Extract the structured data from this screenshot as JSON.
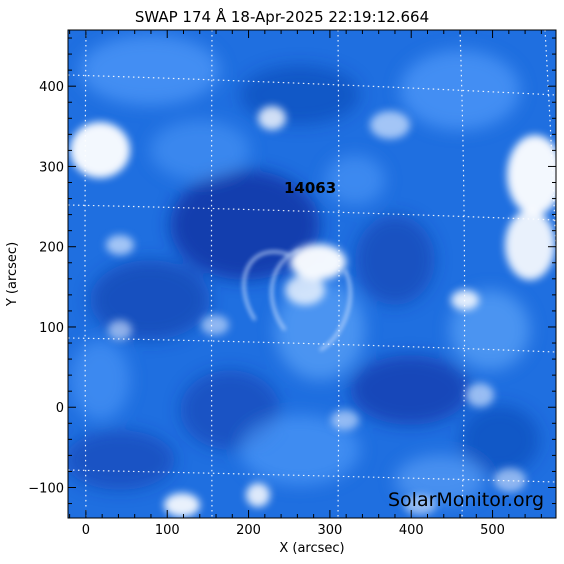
{
  "title": "SWAP 174 Å 18-Apr-2025 22:19:12.664",
  "x_axis": {
    "label": "X (arcsec)",
    "range": [
      -22,
      578
    ],
    "ticks": [
      0,
      100,
      200,
      300,
      400,
      500
    ],
    "tick_labels": [
      "0",
      "100",
      "200",
      "300",
      "400",
      "500"
    ]
  },
  "y_axis": {
    "label": "Y (arcsec)",
    "range": [
      -138,
      470
    ],
    "ticks": [
      -100,
      0,
      100,
      200,
      300,
      400
    ],
    "tick_labels": [
      "−100",
      "0",
      "100",
      "200",
      "300",
      "400"
    ]
  },
  "active_region": {
    "number": "14063",
    "x": 283,
    "y": 268
  },
  "watermark": "SolarMonitor.org",
  "colors": {
    "background_blue": "#1f6fe0",
    "dark_blue": "#0c2f9e",
    "bright": "#ffffff",
    "grid": "#ffffff"
  }
}
